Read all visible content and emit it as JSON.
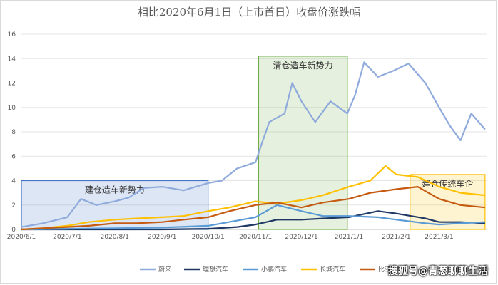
{
  "chart_data": {
    "type": "line",
    "title": "相比2020年6月1日（上市首日）收盘价涨跌幅",
    "xlabel": "",
    "ylabel": "",
    "x_ticks": [
      "2020/6/1",
      "2020/7/1",
      "2020/8/1",
      "2020/9/1",
      "2020/10/1",
      "2020/11/1",
      "2020/12/1",
      "2021/1/1",
      "2021/2/1",
      "2021/3/1"
    ],
    "ylim": [
      0,
      16
    ],
    "y_ticks": [
      0,
      2,
      4,
      6,
      8,
      10,
      12,
      14,
      16
    ],
    "grid": true,
    "legend_placement": "bottom",
    "annotations": [
      {
        "label": "建仓造车新势力",
        "x_start": "2020/6/1",
        "x_end": "2020/10/1",
        "y_bottom": 0,
        "y_top": 4.0,
        "color": "#4472c4"
      },
      {
        "label": "清仓造车新势力",
        "x_start": "2020/11/3",
        "x_end": "2020/12/31",
        "y_bottom": 0,
        "y_top": 14.2,
        "color": "#70ad47"
      },
      {
        "label": "建仓传统车企",
        "x_start": "2021/2/10",
        "x_end": "2021/3/31",
        "y_bottom": 0,
        "y_top": 4.5,
        "color": "#ffc000"
      }
    ],
    "series": [
      {
        "name": "蔚来",
        "color": "#8faadc",
        "x": [
          "2020/6/1",
          "2020/6/15",
          "2020/7/1",
          "2020/7/10",
          "2020/7/20",
          "2020/8/1",
          "2020/8/10",
          "2020/8/20",
          "2020/9/1",
          "2020/9/15",
          "2020/10/1",
          "2020/10/10",
          "2020/10/20",
          "2020/11/1",
          "2020/11/5",
          "2020/11/10",
          "2020/11/20",
          "2020/11/25",
          "2020/12/1",
          "2020/12/10",
          "2020/12/20",
          "2020/12/31",
          "2021/1/5",
          "2021/1/11",
          "2021/1/20",
          "2021/1/30",
          "2021/2/9",
          "2021/2/20",
          "2021/3/1",
          "2021/3/8",
          "2021/3/15",
          "2021/3/22",
          "2021/3/31"
        ],
        "values": [
          0.2,
          0.5,
          1.0,
          2.5,
          2.0,
          2.3,
          2.6,
          3.4,
          3.5,
          3.2,
          3.8,
          4.0,
          5.0,
          5.5,
          7.0,
          8.8,
          9.5,
          12.0,
          10.5,
          8.8,
          10.5,
          9.5,
          11.0,
          13.7,
          12.5,
          13.0,
          13.6,
          12.0,
          10.0,
          8.5,
          7.3,
          9.5,
          8.2
        ]
      },
      {
        "name": "理想汽车",
        "color": "#1f3864",
        "x": [
          "2020/6/1",
          "2020/7/1",
          "2020/8/1",
          "2020/9/1",
          "2020/10/1",
          "2020/10/20",
          "2020/11/1",
          "2020/11/15",
          "2020/12/1",
          "2020/12/15",
          "2021/1/1",
          "2021/1/20",
          "2021/2/1",
          "2021/2/20",
          "2021/3/1",
          "2021/3/15",
          "2021/3/31"
        ],
        "values": [
          0,
          0,
          0,
          0,
          0.05,
          0.2,
          0.4,
          0.8,
          0.8,
          0.9,
          1.0,
          1.5,
          1.3,
          0.9,
          0.6,
          0.6,
          0.5
        ]
      },
      {
        "name": "小鹏汽车",
        "color": "#5b9bd5",
        "x": [
          "2020/6/1",
          "2020/7/1",
          "2020/8/1",
          "2020/9/1",
          "2020/10/1",
          "2020/11/1",
          "2020/11/15",
          "2020/12/1",
          "2020/12/15",
          "2021/1/1",
          "2021/1/20",
          "2021/2/1",
          "2021/2/20",
          "2021/3/1",
          "2021/3/15",
          "2021/3/31"
        ],
        "values": [
          0,
          0.05,
          0.1,
          0.15,
          0.3,
          1.0,
          2.0,
          1.5,
          1.1,
          1.1,
          1.0,
          0.8,
          0.5,
          0.4,
          0.5,
          0.6
        ]
      },
      {
        "name": "长城汽车",
        "color": "#ffc000",
        "x": [
          "2020/6/1",
          "2020/6/15",
          "2020/7/1",
          "2020/7/15",
          "2020/8/1",
          "2020/8/15",
          "2020/9/1",
          "2020/9/15",
          "2020/10/1",
          "2020/10/15",
          "2020/11/1",
          "2020/11/15",
          "2020/12/1",
          "2020/12/15",
          "2021/1/1",
          "2021/1/15",
          "2021/1/25",
          "2021/2/1",
          "2021/2/15",
          "2021/3/1",
          "2021/3/15",
          "2021/3/31"
        ],
        "values": [
          0,
          0.1,
          0.3,
          0.6,
          0.8,
          0.9,
          1.0,
          1.1,
          1.5,
          1.8,
          2.3,
          2.1,
          2.4,
          2.8,
          3.5,
          4.0,
          5.2,
          4.5,
          4.3,
          3.5,
          3.0,
          2.8
        ]
      },
      {
        "name": "比亚迪",
        "color": "#c55a11",
        "x": [
          "2020/6/1",
          "2020/6/15",
          "2020/7/1",
          "2020/7/15",
          "2020/8/1",
          "2020/8/15",
          "2020/9/1",
          "2020/9/15",
          "2020/10/1",
          "2020/10/15",
          "2020/11/1",
          "2020/11/15",
          "2020/12/1",
          "2020/12/15",
          "2021/1/1",
          "2021/1/15",
          "2021/2/1",
          "2021/2/15",
          "2021/3/1",
          "2021/3/15",
          "2021/3/31"
        ],
        "values": [
          0,
          0.1,
          0.2,
          0.3,
          0.5,
          0.5,
          0.6,
          0.8,
          1.0,
          1.5,
          2.0,
          2.2,
          1.8,
          2.2,
          2.5,
          3.0,
          3.3,
          3.5,
          2.5,
          2.0,
          1.8
        ]
      }
    ]
  },
  "watermark": "搜狐号@青葱聊聊生活"
}
